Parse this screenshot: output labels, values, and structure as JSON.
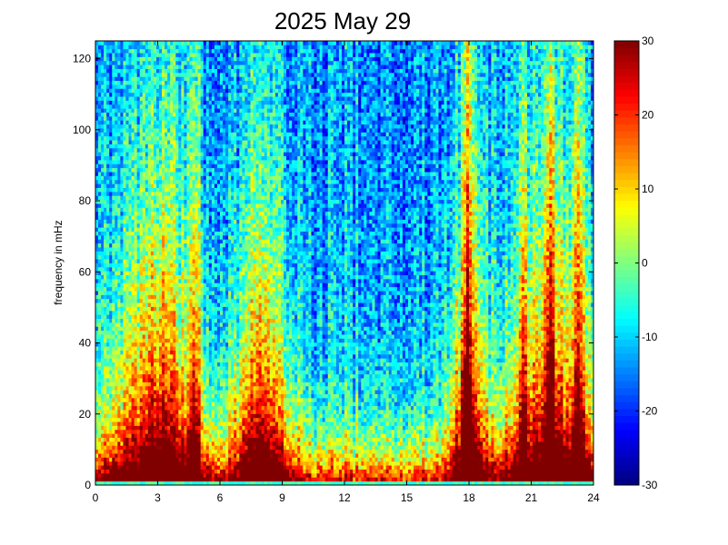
{
  "chart_data": {
    "type": "heatmap",
    "title": "2025 May 29",
    "xlabel": "",
    "ylabel": "frequency in mHz",
    "xlim": [
      0,
      24
    ],
    "ylim": [
      0,
      125
    ],
    "x_ticks": [
      "0",
      "3",
      "6",
      "9",
      "12",
      "15",
      "18",
      "21",
      "24"
    ],
    "y_ticks": [
      "0",
      "20",
      "40",
      "60",
      "80",
      "100",
      "120"
    ],
    "colorbar": {
      "range": [
        -30,
        30
      ],
      "ticks": [
        "-30",
        "-20",
        "-10",
        "0",
        "10",
        "20",
        "30"
      ],
      "colormap": "jet"
    },
    "grid": false,
    "description_of_structure": {
      "low_freq_floor_value": 30,
      "high_freq_value": -14,
      "bright_columns_hours": [
        4.8,
        17.9,
        20.6,
        21.9,
        23.3
      ],
      "active_periods_hours": [
        [
          1,
          5
        ],
        [
          7,
          9
        ],
        [
          17.5,
          18.5
        ],
        [
          20,
          24
        ]
      ]
    }
  }
}
